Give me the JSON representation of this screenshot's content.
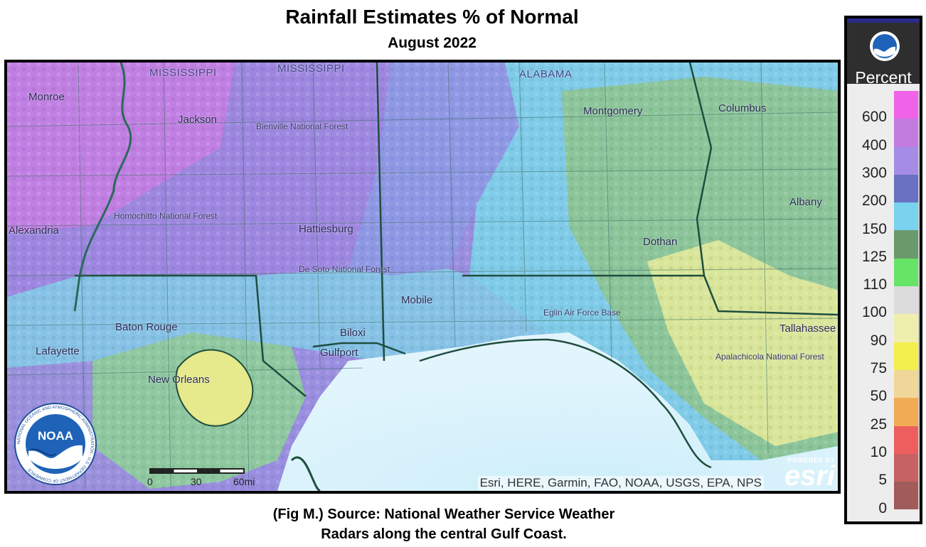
{
  "title": "Rainfall Estimates % of Normal",
  "subtitle": "August 2022",
  "caption": {
    "line1": "(Fig M.) Source: National Weather Service Weather",
    "line2": "Radars along the central Gulf Coast."
  },
  "legend": {
    "unit": "Percent",
    "logo_icon": "noaa-logo-icon",
    "stops": [
      {
        "label": "600",
        "color": "#f063e8"
      },
      {
        "label": "400",
        "color": "#c27ce0"
      },
      {
        "label": "300",
        "color": "#a58ce6"
      },
      {
        "label": "200",
        "color": "#6a70c2"
      },
      {
        "label": "150",
        "color": "#79d2ee"
      },
      {
        "label": "125",
        "color": "#6a9a6c"
      },
      {
        "label": "110",
        "color": "#66e466"
      },
      {
        "label": "100",
        "color": "#dcdcdc"
      },
      {
        "label": "90",
        "color": "#efefad"
      },
      {
        "label": "75",
        "color": "#f2ef4e"
      },
      {
        "label": "50",
        "color": "#f1d69a"
      },
      {
        "label": "25",
        "color": "#f2ab55"
      },
      {
        "label": "10",
        "color": "#ee5e5e"
      },
      {
        "label": "5",
        "color": "#c66262"
      },
      {
        "label": "0",
        "color": "#a15b5b"
      }
    ]
  },
  "map": {
    "places": {
      "mississippi_state": "MISSISSIPPI",
      "mississippi_state2": "MISSISSIPPI",
      "alabama_state": "ALABAMA",
      "monroe": "Monroe",
      "jackson": "Jackson",
      "bienville": "Bienville National Forest",
      "montgomery": "Montgomery",
      "columbus": "Columbus",
      "alexandria": "Alexandria",
      "homochitto": "Homochitto National Forest",
      "hattiesburg": "Hattiesburg",
      "albany": "Albany",
      "dothan": "Dothan",
      "desoto": "De Soto National Forest",
      "mobile": "Mobile",
      "baton_rouge": "Baton Rouge",
      "biloxi": "Biloxi",
      "gulfport": "Gulfport",
      "eglin": "Eglin Air Force Base",
      "tallahassee": "Tallahassee",
      "lafayette": "Lafayette",
      "new_orleans": "New Orleans",
      "apalachicola": "Apalachicola National Forest"
    },
    "scale": {
      "zero": "0",
      "mid": "30",
      "end": "60mi"
    },
    "attribution": "Esri, HERE, Garmin, FAO, NOAA, USGS, EPA, NPS",
    "esri_powered": "POWERED BY",
    "esri_word": "esri",
    "noaa_logo_text": "NOAA",
    "noaa_ring_text": "NATIONAL OCEANIC AND ATMOSPHERIC ADMINISTRATION · U.S. DEPARTMENT OF COMMERCE"
  }
}
